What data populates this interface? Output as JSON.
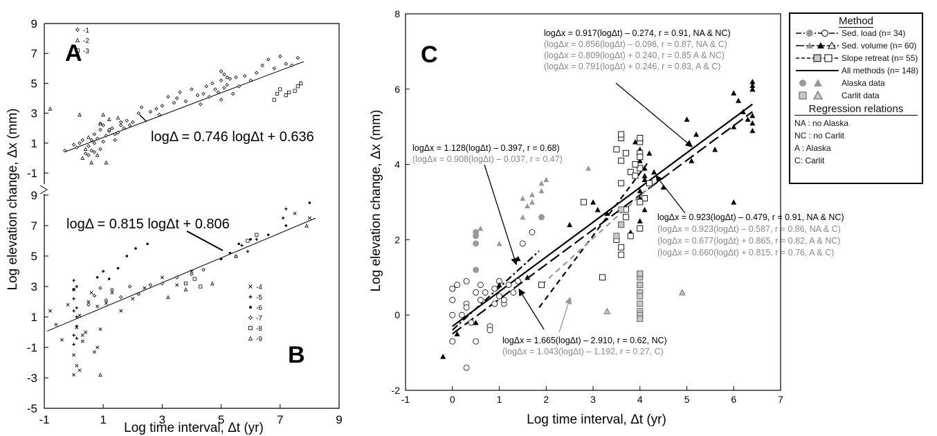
{
  "panel_labels": {
    "A": "A",
    "B": "B",
    "C": "C"
  },
  "left": {
    "ylabel": "Log elevation change, Δx (mm)",
    "xlabel": "Log time interval, Δt (yr)",
    "xticks": [
      "-1",
      "1",
      "3",
      "5",
      "7",
      "9"
    ],
    "yticks_top": [
      "-1",
      "1",
      "3",
      "5",
      "7",
      "9"
    ],
    "yticks_bottom": [
      "-5",
      "-3",
      "-1",
      "1",
      "3",
      "5",
      "7",
      "9"
    ],
    "eqA": "logΔ = 0.746 logΔt + 0.636",
    "eqB": "logΔ = 0.815 logΔt + 0.806",
    "legendA": [
      "-1",
      "-2",
      "-3"
    ],
    "legendB": [
      "-4",
      "-5",
      "-6",
      "-7",
      "-8",
      "-9"
    ]
  },
  "right": {
    "ylabel": "Log elevation change, Δx (mm)",
    "xlabel": "Log time interval, Δt (yr)",
    "xticks": [
      "-1",
      "0",
      "1",
      "2",
      "3",
      "4",
      "5",
      "6",
      "7"
    ],
    "yticks": [
      "-2",
      "0",
      "2",
      "4",
      "6",
      "8"
    ],
    "eq_top": [
      "logΔx = 0.917(logΔt) – 0.274, r = 0.91, NA & NC)",
      "(logΔx = 0.856(logΔt) – 0.098, r = 0.87, NA & C)",
      "(logΔx = 0.809(logΔt) + 0.240, r = 0.85 A & NC)",
      "(logΔx = 0.791(logΔt) + 0.246, r = 0.83, A & C)"
    ],
    "eq_mid_left": [
      "logΔx = 1.128(logΔt) – 0.397, r = 0.68)",
      "(logΔx = 0.908(logΔt) – 0.037, r = 0.47)"
    ],
    "eq_mid_right": [
      "logΔx = 0.923(logΔt) – 0.479, r = 0.91, NA & NC)",
      "(logΔx = 0.923(logΔt) – 0.587, r = 0.86, NA & C)",
      "(logΔx = 0.677(logΔt) + 0.865, r = 0.82, A & NC)",
      "(logΔx = 0.660(logΔt) + 0.815, r = 0.76, A & C)"
    ],
    "eq_bottom": [
      "logΔx = 1.665(logΔt) – 2.910, r = 0.62, NC)",
      "(logΔx = 1.043(logΔt) – 1.192, r = 0.27, C)"
    ]
  },
  "legend": {
    "title": "Method",
    "rows": [
      "Sed. load (n= 34)",
      "Sed. volume (n= 60)",
      "Slope retreat (n= 55)",
      "All methods (n= 148)",
      "Alaska data",
      "Carlit data"
    ],
    "subtitle": "Regression relations",
    "abbr": [
      "NA : no Alaska",
      "NC : no Carlit",
      "A : Alaska",
      "C: Carlit"
    ]
  },
  "colors": {
    "black": "#000000",
    "gray": "#999999",
    "lightgray": "#c8c8c8"
  },
  "chart_data": [
    {
      "type": "scatter",
      "panel": "A",
      "xlim": [
        -1,
        9
      ],
      "ylim": [
        -1,
        9
      ],
      "fit": {
        "slope": 0.746,
        "intercept": 0.636
      },
      "series": [
        {
          "name": "-1",
          "marker": "diamond",
          "x": [
            -0.3,
            0.1,
            0.2,
            0.4,
            0.5,
            0.6,
            0.6,
            0.7,
            0.7,
            0.8,
            0.9,
            0.9,
            1.0,
            1.1,
            1.2,
            1.3,
            1.4,
            1.5,
            1.6,
            1.7,
            1.8,
            1.9,
            2.0,
            2.3,
            2.6,
            2.9,
            3.0,
            3.2,
            3.4,
            3.6,
            3.8,
            4.0,
            4.2,
            4.3,
            4.5,
            4.6,
            4.7,
            4.9,
            5.0,
            5.0,
            5.1,
            5.1,
            5.2,
            5.3,
            5.4,
            5.5,
            5.6,
            5.8,
            6.0,
            6.2,
            6.4,
            6.6,
            6.8,
            7.0,
            7.2,
            7.4,
            7.6,
            0.0,
            0.3,
            0.5,
            0.7,
            0.9,
            1.0,
            1.2,
            1.4,
            1.6,
            2.2,
            2.8,
            3.5,
            4.4,
            4.8,
            5.0,
            5.2
          ],
          "y": [
            0.5,
            0.7,
            1.0,
            0.3,
            0.8,
            1.2,
            0.5,
            1.0,
            1.6,
            1.3,
            0.6,
            1.9,
            1.1,
            1.5,
            1.8,
            2.0,
            1.2,
            1.7,
            2.2,
            2.0,
            2.5,
            2.2,
            2.4,
            3.4,
            3.1,
            2.9,
            3.5,
            4.1,
            3.7,
            4.4,
            3.8,
            4.6,
            4.2,
            3.6,
            4.8,
            4.1,
            5.0,
            4.4,
            5.2,
            3.9,
            4.7,
            5.6,
            4.9,
            5.3,
            4.3,
            5.4,
            4.8,
            5.5,
            5.2,
            5.7,
            6.2,
            6.6,
            6.0,
            6.8,
            6.3,
            6.2,
            6.7,
            0.9,
            1.2,
            0.2,
            0.4,
            2.3,
            2.2,
            1.9,
            1.6,
            2.4,
            3.0,
            3.3,
            4.0,
            4.3,
            4.6,
            5.8,
            5.4
          ]
        },
        {
          "name": "-2",
          "marker": "triangle",
          "x": [
            -0.8,
            0.2,
            0.4,
            0.6,
            0.9,
            1.0,
            1.2,
            1.5,
            0.8,
            0.5,
            0.3,
            1.1
          ],
          "y": [
            3.3,
            2.9,
            0.6,
            -0.3,
            2.3,
            2.9,
            2.6,
            2.7,
            0.2,
            1.4,
            0.0,
            -0.3
          ]
        },
        {
          "name": "-3",
          "marker": "square",
          "x": [
            6.8,
            6.9,
            7.0,
            7.2,
            7.3,
            7.5,
            7.6,
            7.7
          ],
          "y": [
            3.9,
            4.3,
            4.6,
            4.2,
            4.4,
            4.5,
            4.8,
            5.0
          ]
        }
      ]
    },
    {
      "type": "scatter",
      "panel": "B",
      "xlim": [
        -1,
        9
      ],
      "ylim": [
        -5,
        9
      ],
      "fit": {
        "slope": 0.815,
        "intercept": 0.806
      },
      "series": [
        {
          "name": "-4",
          "marker": "x",
          "x": [
            -0.8,
            -0.6,
            -0.4,
            -0.2,
            0.0,
            0.0,
            0.1,
            0.1,
            0.2,
            0.3,
            0.4,
            0.6,
            0.7,
            0.8,
            0.9,
            1.1,
            1.3,
            1.6,
            2.0,
            2.4,
            3.0,
            3.5,
            4.0,
            7.5,
            8.0,
            0.0,
            0.2,
            0.3,
            0.5,
            0.8
          ],
          "y": [
            1.4,
            0.5,
            -0.5,
            1.8,
            2.8,
            -1.5,
            0.3,
            -2.2,
            1.1,
            -0.6,
            0.0,
            2.6,
            -1.3,
            1.7,
            0.2,
            1.9,
            2.6,
            1.4,
            2.2,
            2.9,
            3.6,
            3.1,
            4.0,
            7.8,
            7.5,
            -2.8,
            -2.5,
            -0.2,
            2.0,
            -1.0
          ]
        },
        {
          "name": "-5",
          "marker": "plus",
          "x": [
            0.0,
            0.0,
            0.0,
            0.1,
            0.1,
            0.1,
            0.0,
            0.0,
            0.1,
            0.0,
            0.1,
            5.5,
            5.7,
            5.9,
            6.2,
            7.1,
            7.2
          ],
          "y": [
            3.4,
            2.8,
            2.2,
            1.6,
            1.0,
            0.4,
            -0.2,
            -0.8,
            3.0,
            1.4,
            -0.4,
            5.0,
            5.7,
            5.3,
            6.1,
            7.5,
            8.1
          ]
        },
        {
          "name": "-6",
          "marker": "dot",
          "x": [
            0.8,
            1.0,
            1.2,
            1.5,
            1.8,
            2.1,
            2.5,
            5.0,
            5.3,
            5.6,
            6.0,
            6.6,
            7.2,
            8.0
          ],
          "y": [
            3.6,
            4.0,
            3.5,
            4.2,
            5.0,
            5.5,
            5.8,
            4.8,
            5.2,
            5.8,
            6.1,
            6.4,
            7.0,
            8.5
          ]
        },
        {
          "name": "-7",
          "marker": "diamond",
          "x": [
            0.5,
            0.7,
            0.9,
            1.1,
            1.3,
            1.6,
            1.9,
            2.2,
            2.6,
            3.0,
            3.5,
            4.0,
            4.4
          ],
          "y": [
            1.8,
            2.4,
            2.9,
            2.1,
            2.8,
            2.3,
            3.0,
            2.5,
            3.1,
            3.2,
            3.6,
            3.8,
            4.1
          ]
        },
        {
          "name": "-8",
          "marker": "square",
          "x": [
            3.8,
            4.1,
            4.3,
            5.9,
            6.2
          ],
          "y": [
            3.2,
            3.5,
            3.0,
            6.0,
            6.4
          ]
        },
        {
          "name": "-9",
          "marker": "triangle",
          "x": [
            0.9,
            3.2,
            3.8,
            4.7,
            5.5,
            7.9
          ],
          "y": [
            -2.8,
            2.3,
            2.8,
            3.2,
            5.0,
            7.0
          ]
        }
      ]
    },
    {
      "type": "scatter",
      "panel": "C",
      "xlim": [
        -1,
        7
      ],
      "ylim": [
        -2,
        8
      ],
      "series": [
        {
          "name": "Sed. load",
          "marker": "circle-open",
          "x": [
            0.0,
            0.0,
            0.0,
            0.0,
            0.1,
            0.2,
            0.3,
            0.3,
            0.4,
            0.5,
            0.6,
            0.6,
            0.7,
            0.8,
            0.9,
            1.0,
            1.0,
            1.1,
            1.2,
            1.3,
            1.4,
            1.5,
            1.7,
            0.3,
            0.3,
            0.8,
            0.5,
            0.9,
            1.1
          ],
          "y": [
            0.0,
            0.4,
            0.7,
            -0.7,
            0.8,
            0.0,
            -1.4,
            0.3,
            -0.2,
            -0.7,
            0.4,
            0.8,
            0.6,
            -0.3,
            0.7,
            0.5,
            0.9,
            0.3,
            0.8,
            0.6,
            0.9,
            1.9,
            2.2,
            0.2,
            0.9,
            -0.4,
            0.6,
            0.3,
            0.4
          ]
        },
        {
          "name": "Alaska (Sed. load)",
          "marker": "circle-gray",
          "x": [
            0.5,
            0.5,
            0.5,
            0.5,
            1.9
          ],
          "y": [
            2.2,
            2.1,
            1.9,
            1.2,
            2.6
          ]
        },
        {
          "name": "Sed. volume",
          "marker": "triangle-black",
          "x": [
            0.1,
            -0.2,
            0.5,
            1.0,
            1.4,
            1.6,
            2.5,
            3.0,
            3.1,
            3.3,
            3.6,
            3.8,
            4.0,
            4.0,
            4.0,
            4.1,
            4.1,
            4.2,
            4.3,
            4.5,
            5.0,
            5.1,
            5.2,
            5.6,
            6.0,
            6.0,
            6.0,
            6.1,
            6.2,
            6.3,
            6.4,
            6.4,
            6.4,
            6.4,
            6.4,
            6.4,
            6.4,
            3.9,
            4.0,
            4.0,
            4.0,
            4.1,
            4.1
          ],
          "y": [
            -0.5,
            -1.1,
            -0.2,
            0.8,
            1.5,
            1.0,
            2.4,
            3.0,
            2.8,
            2.7,
            2.4,
            2.2,
            2.5,
            3.3,
            3.1,
            2.8,
            3.7,
            4.3,
            3.8,
            3.4,
            5.2,
            4.1,
            4.8,
            4.4,
            3.0,
            5.9,
            5.0,
            5.7,
            5.4,
            5.2,
            6.1,
            6.0,
            6.0,
            5.3,
            5.1,
            4.9,
            6.2,
            4.6,
            4.7,
            4.4,
            4.1,
            3.9,
            3.6
          ]
        },
        {
          "name": "Alaska (Sed. volume)",
          "marker": "triangle-gray",
          "x": [
            0.6,
            1.0,
            1.5,
            1.6,
            1.7,
            1.7,
            1.9,
            1.9,
            2.0,
            2.9,
            1.5
          ],
          "y": [
            2.3,
            1.9,
            3.1,
            2.9,
            3.0,
            3.2,
            3.5,
            3.3,
            3.6,
            3.9,
            2.6
          ]
        },
        {
          "name": "Carlit (Sed. volume)",
          "marker": "triangle-lightgray",
          "x": [
            3.3,
            4.9
          ],
          "y": [
            0.1,
            0.6
          ]
        },
        {
          "name": "Slope retreat",
          "marker": "square-open",
          "x": [
            1.9,
            2.8,
            3.2,
            3.5,
            3.6,
            3.6,
            3.6,
            3.7,
            3.8,
            3.6,
            3.9,
            4.0,
            4.0,
            4.0,
            4.0,
            4.1,
            4.2,
            4.0,
            3.7,
            3.8,
            3.6,
            3.6,
            3.5,
            3.6,
            3.7,
            4.0,
            3.9,
            4.0
          ],
          "y": [
            0.8,
            3.0,
            1.0,
            4.4,
            4.1,
            4.7,
            4.8,
            4.3,
            3.8,
            3.5,
            3.7,
            3.9,
            4.6,
            4.3,
            4.2,
            3.1,
            3.5,
            2.3,
            2.8,
            2.1,
            2.4,
            1.8,
            2.0,
            1.6,
            2.6,
            3.0,
            4.0,
            4.7
          ]
        },
        {
          "name": "Carlit (Slope retreat)",
          "marker": "square-lightgray",
          "x": [
            4.0,
            4.0,
            4.0,
            4.0,
            4.0,
            4.0,
            4.0,
            4.0,
            4.0,
            4.0,
            3.6,
            4.0,
            3.6,
            3.5
          ],
          "y": [
            1.1,
            1.0,
            0.8,
            0.6,
            0.5,
            0.3,
            0.1,
            0.0,
            -0.1,
            0.8,
            2.4,
            1.1,
            2.8,
            2.1
          ]
        }
      ],
      "fits": [
        {
          "name": "All methods",
          "style": "solid",
          "color": "#000000",
          "x": [
            0.0,
            6.4
          ],
          "y": [
            -0.3,
            5.6
          ]
        },
        {
          "name": "Sed. volume",
          "style": "longdash",
          "color": "#000000",
          "x": [
            0.0,
            6.4
          ],
          "y": [
            -0.5,
            5.4
          ]
        },
        {
          "name": "Sed. load",
          "style": "dashdot",
          "color": "#000000",
          "x": [
            0.0,
            1.85
          ],
          "y": [
            -0.4,
            1.7
          ]
        },
        {
          "name": "Slope retreat (NC)",
          "style": "dash",
          "color": "#000000",
          "x": [
            1.85,
            4.2
          ],
          "y": [
            0.2,
            4.1
          ]
        },
        {
          "name": "Slope retreat (C)",
          "style": "dash",
          "color": "#999999",
          "x": [
            1.9,
            4.3
          ],
          "y": [
            0.8,
            3.5
          ]
        }
      ]
    }
  ]
}
